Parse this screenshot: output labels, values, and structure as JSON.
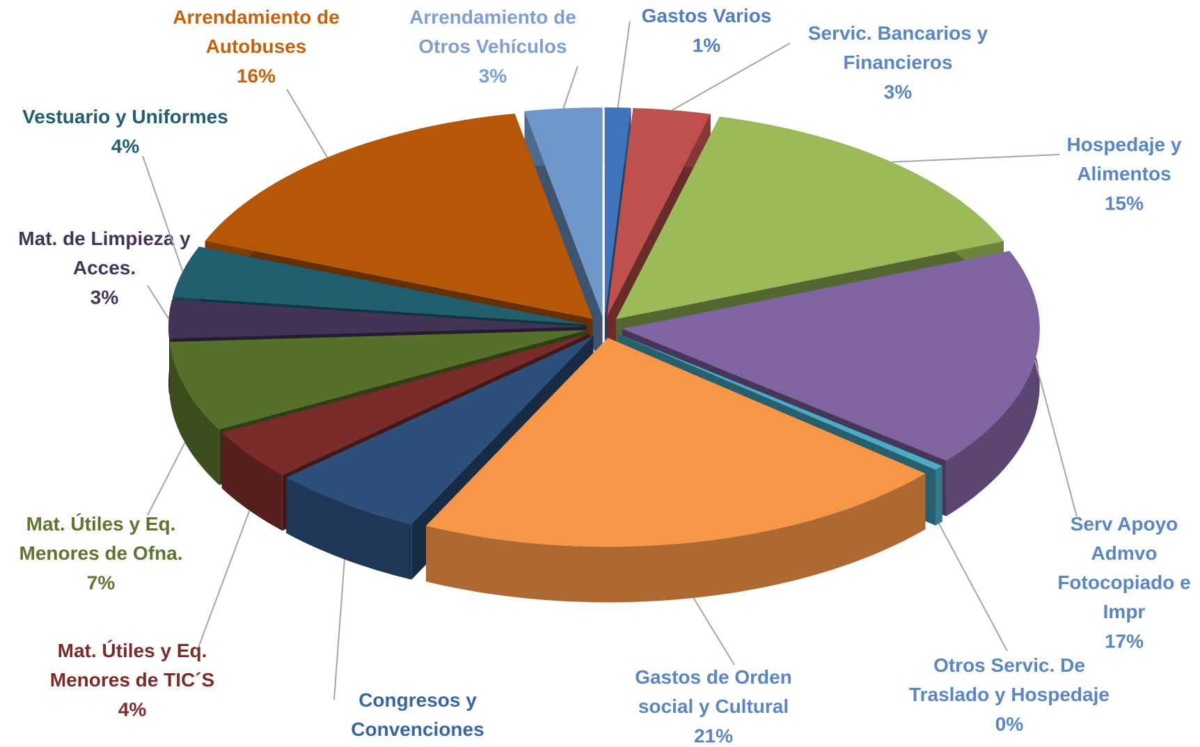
{
  "chart_data": {
    "type": "pie3d",
    "categories": [
      "Gastos Varios",
      "Servic. Bancarios y\nFinancieros",
      "Hospedaje y\nAlimentos",
      "Serv Apoyo\nAdmvo\nFotocopiado e\nImpr",
      "Otros Servic. De\nTraslado y Hospedaje",
      "Gastos de Orden\nsocial y Cultural",
      "Congresos y\nConvenciones",
      "Mat. Útiles y Eq.\nMenores de TIC´S",
      "Mat. Útiles y Eq.\nMenores de Ofna.",
      "Mat. de Limpieza y\nAcces.",
      "Vestuario y Uniformes",
      "Arrendamiento de\nAutobuses",
      "Arrendamiento de\nOtros Vehículos"
    ],
    "values": [
      1,
      3,
      15,
      17,
      0.4,
      21,
      6,
      4,
      7,
      3,
      4,
      16,
      3
    ],
    "value_labels": [
      "1%",
      "3%",
      "15%",
      "17%",
      "0%",
      "21%",
      null,
      "4%",
      "7%",
      "3%",
      "4%",
      "16%",
      "3%"
    ],
    "colors": [
      "#3f74bb",
      "#c0504d",
      "#9bbb59",
      "#8064a2",
      "#4bacc6",
      "#f79646",
      "#2c4f7c",
      "#7a2c2a",
      "#56702a",
      "#423456",
      "#215f6e",
      "#b65708",
      "#7097c9"
    ],
    "label_colors": [
      "#4f7fbf",
      "#5b86c0",
      "#5b86c0",
      "#5b86c0",
      "#5b86c0",
      "#5b86c0",
      "#3a66a0",
      "#7a2c2a",
      "#5d7531",
      "#423456",
      "#215f6e",
      "#c3620f",
      "#7f9fce"
    ]
  }
}
